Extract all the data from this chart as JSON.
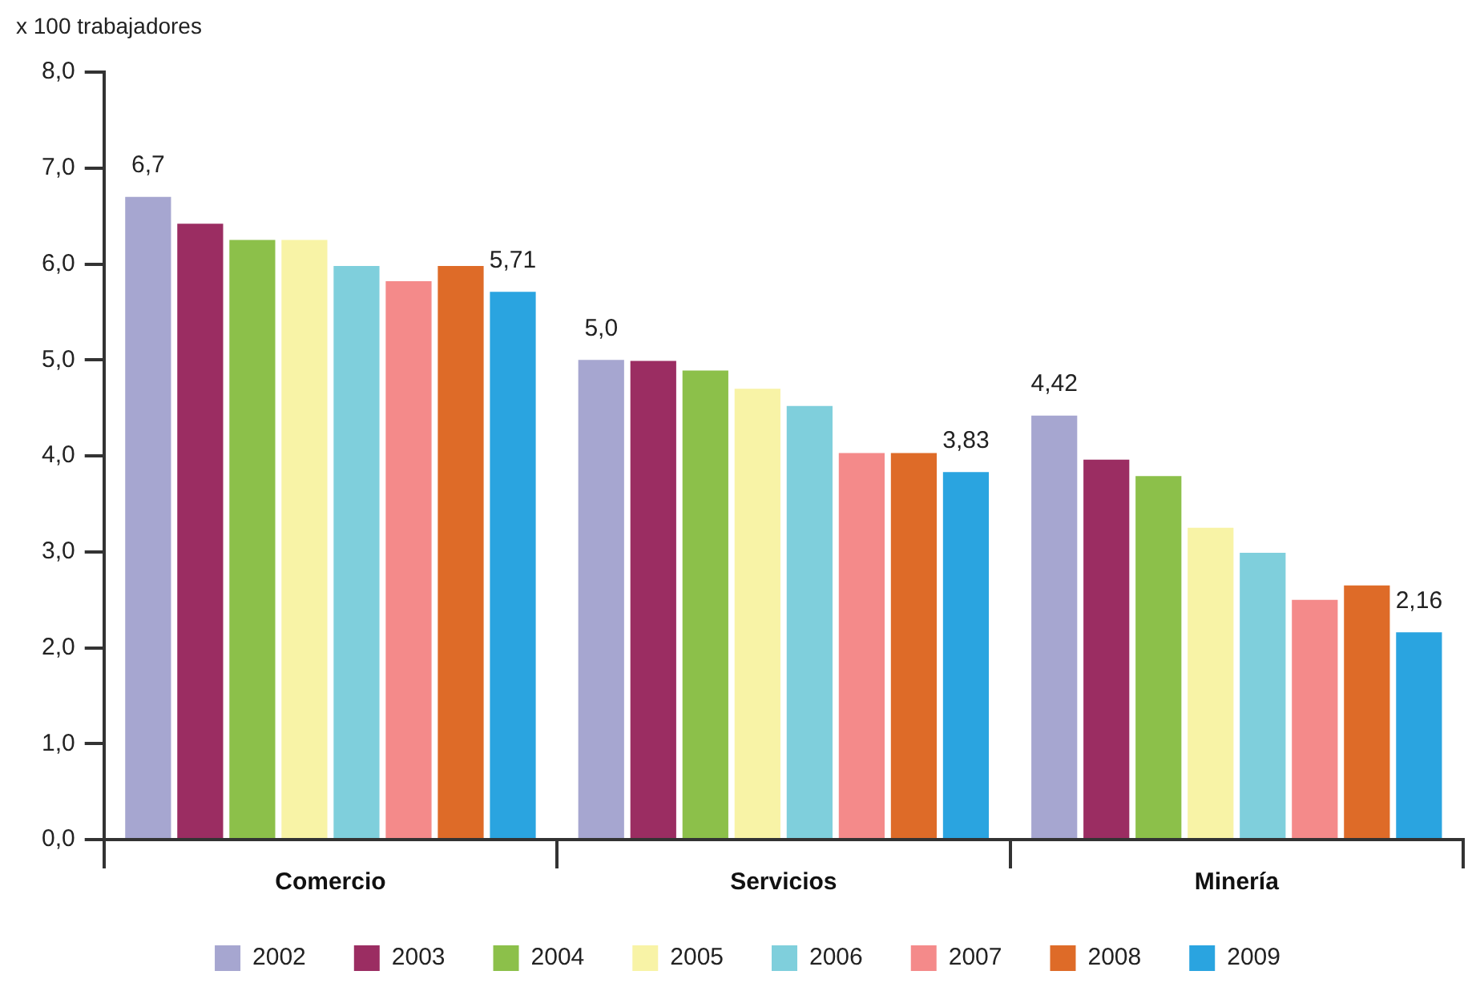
{
  "chart_data": {
    "type": "bar",
    "ylabel": "x 100 trabajadores",
    "categories": [
      "Comercio",
      "Servicios",
      "Minería"
    ],
    "series": [
      {
        "name": "2002",
        "color": "#a6a6d0",
        "values": [
          6.7,
          5.0,
          4.42
        ],
        "value_labels": [
          "6,7",
          "5,0",
          "4,42"
        ]
      },
      {
        "name": "2003",
        "color": "#9b2d62",
        "values": [
          6.42,
          4.99,
          3.96
        ]
      },
      {
        "name": "2004",
        "color": "#8cc04a",
        "values": [
          6.25,
          4.89,
          3.79
        ]
      },
      {
        "name": "2005",
        "color": "#f8f3a6",
        "values": [
          6.25,
          4.7,
          3.25
        ]
      },
      {
        "name": "2006",
        "color": "#7fcfdc",
        "values": [
          5.98,
          4.52,
          2.99
        ]
      },
      {
        "name": "2007",
        "color": "#f48a8a",
        "values": [
          5.82,
          4.03,
          2.5
        ]
      },
      {
        "name": "2008",
        "color": "#de6b28",
        "values": [
          5.98,
          4.03,
          2.65
        ]
      },
      {
        "name": "2009",
        "color": "#2aa4e0",
        "values": [
          5.71,
          3.83,
          2.16
        ],
        "value_labels": [
          "5,71",
          "3,83",
          "2,16"
        ]
      }
    ],
    "ylim": [
      0,
      8
    ],
    "yticks": [
      {
        "value": 0,
        "label": "0,0"
      },
      {
        "value": 1,
        "label": "1,0"
      },
      {
        "value": 2,
        "label": "2,0"
      },
      {
        "value": 3,
        "label": "3,0"
      },
      {
        "value": 4,
        "label": "4,0"
      },
      {
        "value": 5,
        "label": "5,0"
      },
      {
        "value": 6,
        "label": "6,0"
      },
      {
        "value": 7,
        "label": "7,0"
      },
      {
        "value": 8,
        "label": "8,0"
      }
    ],
    "grid": false,
    "legend": "bottom"
  }
}
